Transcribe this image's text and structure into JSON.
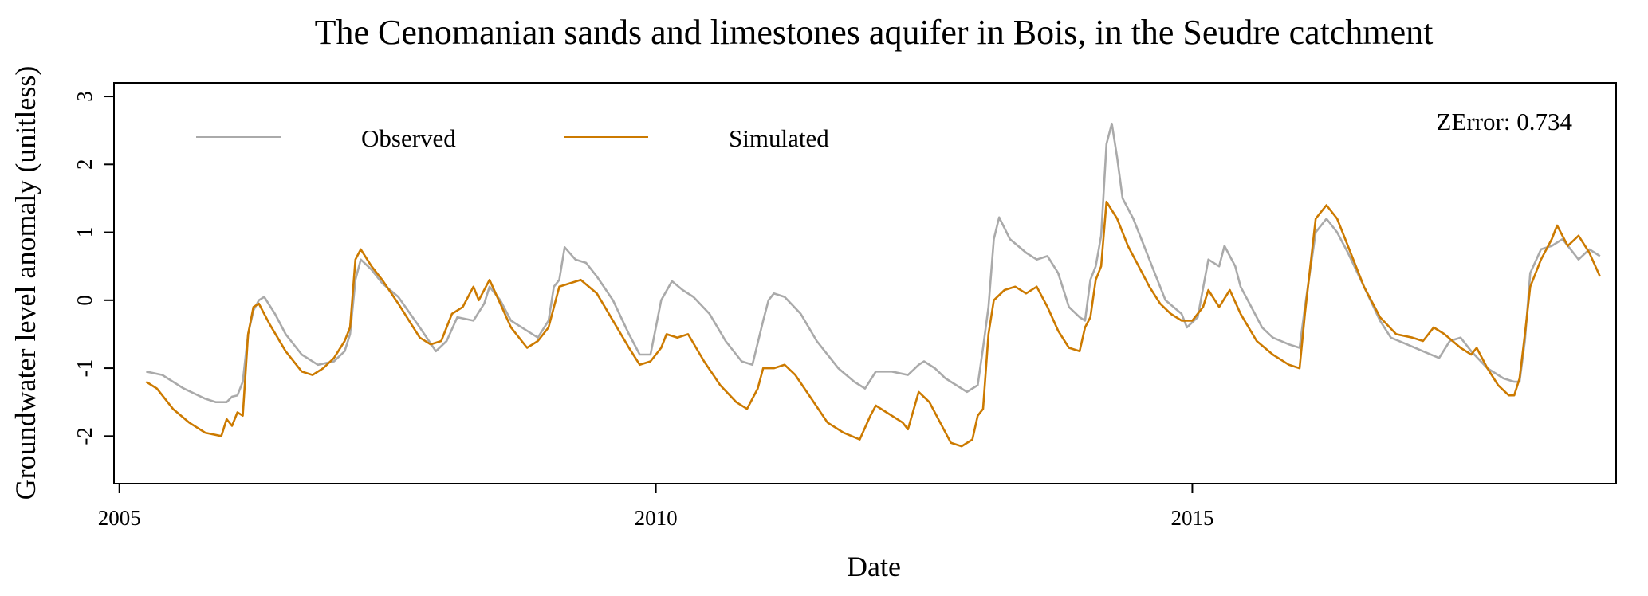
{
  "chart_data": {
    "type": "line",
    "title": "The Cenomanian sands and limestones aquifer in Bois, in the Seudre catchment",
    "xlabel": "Date",
    "ylabel": "Groundwater level anomaly (unitless)",
    "xlim": [
      2004.95,
      2018.95
    ],
    "ylim": [
      -2.7,
      3.2
    ],
    "x_ticks": [
      2005,
      2010,
      2015
    ],
    "x_tick_labels": [
      "2005",
      "2010",
      "2015"
    ],
    "y_ticks": [
      -2,
      -1,
      0,
      1,
      2,
      3
    ],
    "y_tick_labels": [
      "-2",
      "-1",
      "0",
      "1",
      "2",
      "3"
    ],
    "legend_position": "top-left",
    "annotation": "ZError: 0.734",
    "series": [
      {
        "name": "Observed",
        "color": "#AAAAAA",
        "points": [
          [
            2005.25,
            -1.05
          ],
          [
            2005.4,
            -1.1
          ],
          [
            2005.6,
            -1.3
          ],
          [
            2005.8,
            -1.45
          ],
          [
            2005.9,
            -1.5
          ],
          [
            2006.0,
            -1.5
          ],
          [
            2006.05,
            -1.42
          ],
          [
            2006.1,
            -1.4
          ],
          [
            2006.15,
            -1.2
          ],
          [
            2006.2,
            -0.5
          ],
          [
            2006.25,
            -0.15
          ],
          [
            2006.3,
            0.0
          ],
          [
            2006.35,
            0.05
          ],
          [
            2006.45,
            -0.2
          ],
          [
            2006.55,
            -0.5
          ],
          [
            2006.7,
            -0.8
          ],
          [
            2006.85,
            -0.95
          ],
          [
            2007.0,
            -0.9
          ],
          [
            2007.1,
            -0.75
          ],
          [
            2007.15,
            -0.5
          ],
          [
            2007.2,
            0.3
          ],
          [
            2007.25,
            0.6
          ],
          [
            2007.35,
            0.45
          ],
          [
            2007.45,
            0.25
          ],
          [
            2007.6,
            0.05
          ],
          [
            2007.8,
            -0.4
          ],
          [
            2007.95,
            -0.75
          ],
          [
            2008.05,
            -0.6
          ],
          [
            2008.15,
            -0.25
          ],
          [
            2008.3,
            -0.3
          ],
          [
            2008.4,
            -0.05
          ],
          [
            2008.45,
            0.2
          ],
          [
            2008.55,
            0.0
          ],
          [
            2008.65,
            -0.3
          ],
          [
            2008.8,
            -0.45
          ],
          [
            2008.9,
            -0.55
          ],
          [
            2009.0,
            -0.3
          ],
          [
            2009.05,
            0.2
          ],
          [
            2009.1,
            0.3
          ],
          [
            2009.15,
            0.78
          ],
          [
            2009.25,
            0.6
          ],
          [
            2009.35,
            0.55
          ],
          [
            2009.45,
            0.35
          ],
          [
            2009.6,
            0.0
          ],
          [
            2009.75,
            -0.5
          ],
          [
            2009.85,
            -0.8
          ],
          [
            2009.95,
            -0.8
          ],
          [
            2010.05,
            0.0
          ],
          [
            2010.15,
            0.28
          ],
          [
            2010.25,
            0.15
          ],
          [
            2010.35,
            0.05
          ],
          [
            2010.5,
            -0.2
          ],
          [
            2010.65,
            -0.6
          ],
          [
            2010.8,
            -0.9
          ],
          [
            2010.9,
            -0.95
          ],
          [
            2011.0,
            -0.3
          ],
          [
            2011.05,
            0.0
          ],
          [
            2011.1,
            0.1
          ],
          [
            2011.2,
            0.05
          ],
          [
            2011.35,
            -0.2
          ],
          [
            2011.5,
            -0.6
          ],
          [
            2011.7,
            -1.0
          ],
          [
            2011.85,
            -1.2
          ],
          [
            2011.95,
            -1.3
          ],
          [
            2012.05,
            -1.05
          ],
          [
            2012.2,
            -1.05
          ],
          [
            2012.35,
            -1.1
          ],
          [
            2012.45,
            -0.95
          ],
          [
            2012.5,
            -0.9
          ],
          [
            2012.6,
            -1.0
          ],
          [
            2012.7,
            -1.15
          ],
          [
            2012.8,
            -1.25
          ],
          [
            2012.9,
            -1.35
          ],
          [
            2013.0,
            -1.25
          ],
          [
            2013.05,
            -0.7
          ],
          [
            2013.1,
            -0.1
          ],
          [
            2013.15,
            0.9
          ],
          [
            2013.2,
            1.22
          ],
          [
            2013.3,
            0.9
          ],
          [
            2013.45,
            0.7
          ],
          [
            2013.55,
            0.6
          ],
          [
            2013.65,
            0.65
          ],
          [
            2013.75,
            0.4
          ],
          [
            2013.85,
            -0.1
          ],
          [
            2013.95,
            -0.25
          ],
          [
            2014.0,
            -0.3
          ],
          [
            2014.05,
            0.3
          ],
          [
            2014.1,
            0.5
          ],
          [
            2014.15,
            0.95
          ],
          [
            2014.2,
            2.3
          ],
          [
            2014.25,
            2.6
          ],
          [
            2014.3,
            2.1
          ],
          [
            2014.35,
            1.5
          ],
          [
            2014.45,
            1.2
          ],
          [
            2014.55,
            0.8
          ],
          [
            2014.65,
            0.4
          ],
          [
            2014.75,
            0.0
          ],
          [
            2014.9,
            -0.2
          ],
          [
            2014.95,
            -0.4
          ],
          [
            2015.05,
            -0.25
          ],
          [
            2015.15,
            0.6
          ],
          [
            2015.25,
            0.5
          ],
          [
            2015.3,
            0.8
          ],
          [
            2015.4,
            0.5
          ],
          [
            2015.45,
            0.2
          ],
          [
            2015.55,
            -0.1
          ],
          [
            2015.65,
            -0.4
          ],
          [
            2015.75,
            -0.55
          ],
          [
            2015.9,
            -0.65
          ],
          [
            2016.0,
            -0.7
          ],
          [
            2016.05,
            -0.1
          ],
          [
            2016.15,
            1.0
          ],
          [
            2016.25,
            1.2
          ],
          [
            2016.35,
            1.0
          ],
          [
            2016.45,
            0.7
          ],
          [
            2016.6,
            0.2
          ],
          [
            2016.75,
            -0.3
          ],
          [
            2016.85,
            -0.55
          ],
          [
            2017.0,
            -0.65
          ],
          [
            2017.15,
            -0.75
          ],
          [
            2017.3,
            -0.85
          ],
          [
            2017.4,
            -0.6
          ],
          [
            2017.5,
            -0.55
          ],
          [
            2017.6,
            -0.75
          ],
          [
            2017.75,
            -1.0
          ],
          [
            2017.9,
            -1.15
          ],
          [
            2018.0,
            -1.2
          ],
          [
            2018.05,
            -1.2
          ],
          [
            2018.1,
            -0.6
          ],
          [
            2018.15,
            0.4
          ],
          [
            2018.25,
            0.75
          ],
          [
            2018.35,
            0.8
          ],
          [
            2018.45,
            0.9
          ],
          [
            2018.55,
            0.7
          ],
          [
            2018.6,
            0.6
          ],
          [
            2018.7,
            0.75
          ],
          [
            2018.8,
            0.65
          ]
        ]
      },
      {
        "name": "Simulated",
        "color": "#CC7A00",
        "points": [
          [
            2005.25,
            -1.2
          ],
          [
            2005.35,
            -1.3
          ],
          [
            2005.5,
            -1.6
          ],
          [
            2005.65,
            -1.8
          ],
          [
            2005.8,
            -1.95
          ],
          [
            2005.95,
            -2.0
          ],
          [
            2006.0,
            -1.75
          ],
          [
            2006.05,
            -1.85
          ],
          [
            2006.1,
            -1.65
          ],
          [
            2006.15,
            -1.7
          ],
          [
            2006.2,
            -0.5
          ],
          [
            2006.25,
            -0.1
          ],
          [
            2006.3,
            -0.05
          ],
          [
            2006.4,
            -0.35
          ],
          [
            2006.55,
            -0.75
          ],
          [
            2006.7,
            -1.05
          ],
          [
            2006.8,
            -1.1
          ],
          [
            2006.9,
            -1.0
          ],
          [
            2007.0,
            -0.85
          ],
          [
            2007.1,
            -0.6
          ],
          [
            2007.15,
            -0.4
          ],
          [
            2007.2,
            0.6
          ],
          [
            2007.25,
            0.75
          ],
          [
            2007.35,
            0.5
          ],
          [
            2007.45,
            0.3
          ],
          [
            2007.6,
            -0.05
          ],
          [
            2007.8,
            -0.55
          ],
          [
            2007.9,
            -0.65
          ],
          [
            2008.0,
            -0.6
          ],
          [
            2008.1,
            -0.2
          ],
          [
            2008.2,
            -0.1
          ],
          [
            2008.3,
            0.2
          ],
          [
            2008.35,
            0.0
          ],
          [
            2008.45,
            0.3
          ],
          [
            2008.55,
            -0.05
          ],
          [
            2008.65,
            -0.4
          ],
          [
            2008.8,
            -0.7
          ],
          [
            2008.9,
            -0.6
          ],
          [
            2009.0,
            -0.4
          ],
          [
            2009.1,
            0.2
          ],
          [
            2009.2,
            0.25
          ],
          [
            2009.3,
            0.3
          ],
          [
            2009.45,
            0.1
          ],
          [
            2009.6,
            -0.3
          ],
          [
            2009.75,
            -0.7
          ],
          [
            2009.85,
            -0.95
          ],
          [
            2009.95,
            -0.9
          ],
          [
            2010.05,
            -0.7
          ],
          [
            2010.1,
            -0.5
          ],
          [
            2010.2,
            -0.55
          ],
          [
            2010.3,
            -0.5
          ],
          [
            2010.45,
            -0.9
          ],
          [
            2010.6,
            -1.25
          ],
          [
            2010.75,
            -1.5
          ],
          [
            2010.85,
            -1.6
          ],
          [
            2010.95,
            -1.3
          ],
          [
            2011.0,
            -1.0
          ],
          [
            2011.1,
            -1.0
          ],
          [
            2011.2,
            -0.95
          ],
          [
            2011.3,
            -1.1
          ],
          [
            2011.45,
            -1.45
          ],
          [
            2011.6,
            -1.8
          ],
          [
            2011.75,
            -1.95
          ],
          [
            2011.9,
            -2.05
          ],
          [
            2012.0,
            -1.7
          ],
          [
            2012.05,
            -1.55
          ],
          [
            2012.15,
            -1.65
          ],
          [
            2012.3,
            -1.8
          ],
          [
            2012.35,
            -1.9
          ],
          [
            2012.45,
            -1.35
          ],
          [
            2012.55,
            -1.5
          ],
          [
            2012.65,
            -1.8
          ],
          [
            2012.75,
            -2.1
          ],
          [
            2012.85,
            -2.15
          ],
          [
            2012.95,
            -2.05
          ],
          [
            2013.0,
            -1.7
          ],
          [
            2013.05,
            -1.6
          ],
          [
            2013.1,
            -0.5
          ],
          [
            2013.15,
            0.0
          ],
          [
            2013.25,
            0.15
          ],
          [
            2013.35,
            0.2
          ],
          [
            2013.45,
            0.1
          ],
          [
            2013.55,
            0.2
          ],
          [
            2013.65,
            -0.1
          ],
          [
            2013.75,
            -0.45
          ],
          [
            2013.85,
            -0.7
          ],
          [
            2013.95,
            -0.75
          ],
          [
            2014.0,
            -0.4
          ],
          [
            2014.05,
            -0.25
          ],
          [
            2014.1,
            0.3
          ],
          [
            2014.15,
            0.5
          ],
          [
            2014.2,
            1.45
          ],
          [
            2014.3,
            1.2
          ],
          [
            2014.4,
            0.8
          ],
          [
            2014.5,
            0.5
          ],
          [
            2014.6,
            0.2
          ],
          [
            2014.7,
            -0.05
          ],
          [
            2014.8,
            -0.2
          ],
          [
            2014.9,
            -0.3
          ],
          [
            2015.0,
            -0.3
          ],
          [
            2015.1,
            -0.1
          ],
          [
            2015.15,
            0.15
          ],
          [
            2015.25,
            -0.1
          ],
          [
            2015.35,
            0.15
          ],
          [
            2015.45,
            -0.2
          ],
          [
            2015.6,
            -0.6
          ],
          [
            2015.75,
            -0.8
          ],
          [
            2015.9,
            -0.95
          ],
          [
            2016.0,
            -1.0
          ],
          [
            2016.05,
            -0.2
          ],
          [
            2016.15,
            1.2
          ],
          [
            2016.25,
            1.4
          ],
          [
            2016.35,
            1.2
          ],
          [
            2016.45,
            0.8
          ],
          [
            2016.6,
            0.2
          ],
          [
            2016.75,
            -0.25
          ],
          [
            2016.9,
            -0.5
          ],
          [
            2017.05,
            -0.55
          ],
          [
            2017.15,
            -0.6
          ],
          [
            2017.25,
            -0.4
          ],
          [
            2017.35,
            -0.5
          ],
          [
            2017.5,
            -0.7
          ],
          [
            2017.6,
            -0.8
          ],
          [
            2017.65,
            -0.7
          ],
          [
            2017.75,
            -1.0
          ],
          [
            2017.85,
            -1.25
          ],
          [
            2017.95,
            -1.4
          ],
          [
            2018.0,
            -1.4
          ],
          [
            2018.05,
            -1.15
          ],
          [
            2018.1,
            -0.5
          ],
          [
            2018.15,
            0.2
          ],
          [
            2018.25,
            0.6
          ],
          [
            2018.35,
            0.9
          ],
          [
            2018.4,
            1.1
          ],
          [
            2018.5,
            0.8
          ],
          [
            2018.6,
            0.95
          ],
          [
            2018.7,
            0.7
          ],
          [
            2018.8,
            0.35
          ]
        ]
      }
    ]
  }
}
